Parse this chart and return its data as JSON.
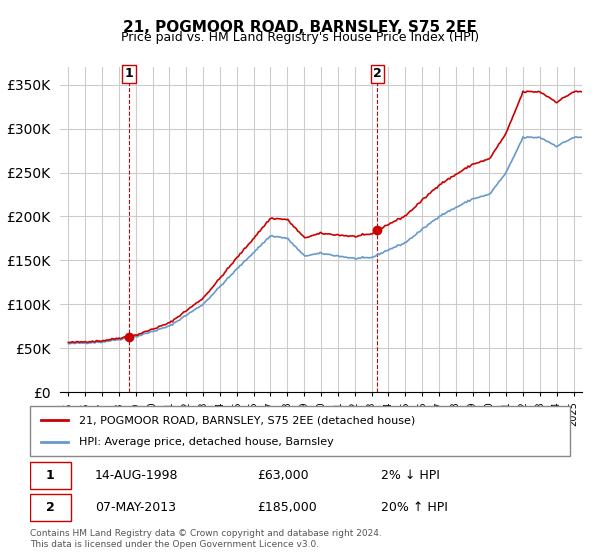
{
  "title": "21, POGMOOR ROAD, BARNSLEY, S75 2EE",
  "subtitle": "Price paid vs. HM Land Registry's House Price Index (HPI)",
  "legend_label_red": "21, POGMOOR ROAD, BARNSLEY, S75 2EE (detached house)",
  "legend_label_blue": "HPI: Average price, detached house, Barnsley",
  "transaction1_label": "1",
  "transaction1_date": "14-AUG-1998",
  "transaction1_price": "£63,000",
  "transaction1_hpi": "2% ↓ HPI",
  "transaction2_label": "2",
  "transaction2_date": "07-MAY-2013",
  "transaction2_price": "£185,000",
  "transaction2_hpi": "20% ↑ HPI",
  "footnote": "Contains HM Land Registry data © Crown copyright and database right 2024.\nThis data is licensed under the Open Government Licence v3.0.",
  "red_color": "#cc0000",
  "blue_color": "#6699cc",
  "marker_color": "#cc0000",
  "vline_color": "#cc0000",
  "grid_color": "#cccccc",
  "background_color": "#ffffff",
  "ylim": [
    0,
    370000
  ],
  "yticks": [
    0,
    50000,
    100000,
    150000,
    200000,
    250000,
    300000,
    350000
  ],
  "xlim_start": 1994.5,
  "xlim_end": 2025.5,
  "transaction1_x": 1998.617,
  "transaction1_y": 63000,
  "transaction2_x": 2013.354,
  "transaction2_y": 185000
}
